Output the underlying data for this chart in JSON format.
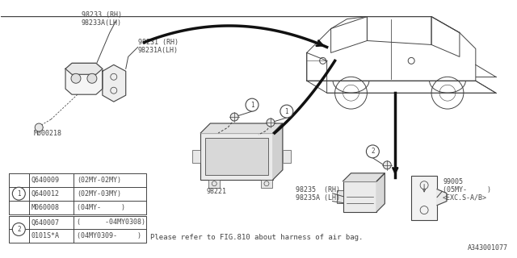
{
  "bg_color": "#ffffff",
  "diagram_id": "A343001077",
  "note": "Please refer to FIG.810 about harness of air bag.",
  "line_color": "#444444",
  "text_color": "#444444",
  "font_size": 6.5,
  "table1_rows": [
    [
      "Q640009",
      "(02MY-02MY)"
    ],
    [
      "Q640012",
      "(02MY-03MY)"
    ],
    [
      "M060008",
      "(04MY-     )"
    ]
  ],
  "table2_rows": [
    [
      "Q640007",
      "(      -04MY0308)"
    ],
    [
      "0101S*A",
      "(04MY0309-     )"
    ]
  ]
}
